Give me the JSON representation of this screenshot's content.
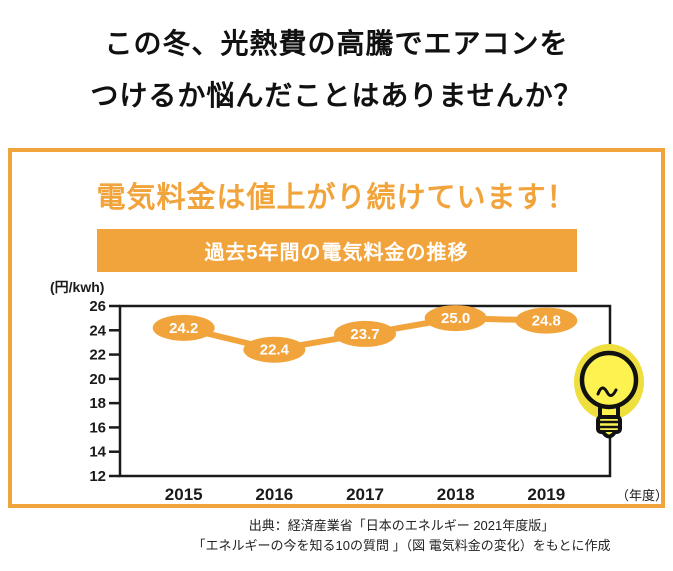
{
  "headline": {
    "line1": "この冬、光熱費の高騰でエアコンを",
    "line2": "つけるか悩んだことはありませんか？"
  },
  "panel": {
    "title": "電気料金は値上がり続けています！",
    "banner_title": "過去5年間の電気料金の推移"
  },
  "chart_data": {
    "type": "line",
    "title": "過去5年間の電気料金の推移",
    "y_unit_label": "(円/kwh)",
    "x_unit_label": "（年度）",
    "categories": [
      "2015",
      "2016",
      "2017",
      "2018",
      "2019"
    ],
    "values": [
      24.2,
      22.4,
      23.7,
      25.0,
      24.8
    ],
    "ylim": [
      12,
      26
    ],
    "yticks": [
      26,
      24,
      22,
      20,
      18,
      16,
      14,
      12
    ],
    "grid": false,
    "legend": false,
    "line_color": "#f2a43c",
    "point_label_bg": "#f2a43c",
    "point_label_text_color": "#ffffff"
  },
  "source": {
    "line1": "出典：経済産業省「日本のエネルギー 2021年度版」",
    "line2": "「エネルギーの今を知る10の質問 」（図 電気料金の変化）をもとに作成"
  },
  "colors": {
    "accent_orange": "#f2a43c",
    "text_black": "#111111",
    "bulb_yellow": "#fdf24f",
    "bulb_halo_yellow": "#efdf3e"
  },
  "icons": {
    "lightbulb": "lightbulb-icon"
  }
}
